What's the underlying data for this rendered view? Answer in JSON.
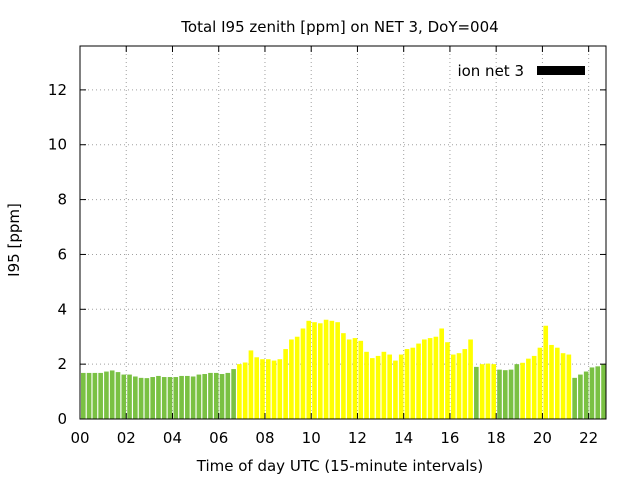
{
  "chart_data": {
    "type": "bar",
    "title": "Total I95 zenith [ppm] on NET 3, DoY=004",
    "xlabel": "Time of day UTC (15-minute intervals)",
    "ylabel": "I95 [ppm]",
    "xlim": [
      0,
      22.75
    ],
    "ylim": [
      0,
      13.6
    ],
    "xticks": [
      "00",
      "02",
      "04",
      "06",
      "08",
      "10",
      "12",
      "14",
      "16",
      "18",
      "20",
      "22"
    ],
    "yticks": [
      "0",
      "2",
      "4",
      "6",
      "8",
      "10",
      "12"
    ],
    "grid": true,
    "legend": {
      "label": "ion net 3",
      "color": "#000000",
      "placement": "top-right"
    },
    "colors": {
      "low": "#7ac143",
      "high": "#ffff00"
    },
    "bar_width_hours": 0.2,
    "bars": [
      {
        "x": 0.0,
        "y": 1.68,
        "c": "low"
      },
      {
        "x": 0.25,
        "y": 1.68,
        "c": "low"
      },
      {
        "x": 0.5,
        "y": 1.68,
        "c": "low"
      },
      {
        "x": 0.75,
        "y": 1.68,
        "c": "low"
      },
      {
        "x": 1.0,
        "y": 1.73,
        "c": "low"
      },
      {
        "x": 1.25,
        "y": 1.77,
        "c": "low"
      },
      {
        "x": 1.5,
        "y": 1.71,
        "c": "low"
      },
      {
        "x": 1.75,
        "y": 1.62,
        "c": "low"
      },
      {
        "x": 2.0,
        "y": 1.62,
        "c": "low"
      },
      {
        "x": 2.25,
        "y": 1.55,
        "c": "low"
      },
      {
        "x": 2.5,
        "y": 1.5,
        "c": "low"
      },
      {
        "x": 2.75,
        "y": 1.49,
        "c": "low"
      },
      {
        "x": 3.0,
        "y": 1.53,
        "c": "low"
      },
      {
        "x": 3.25,
        "y": 1.57,
        "c": "low"
      },
      {
        "x": 3.5,
        "y": 1.53,
        "c": "low"
      },
      {
        "x": 3.75,
        "y": 1.53,
        "c": "low"
      },
      {
        "x": 4.0,
        "y": 1.53,
        "c": "low"
      },
      {
        "x": 4.25,
        "y": 1.57,
        "c": "low"
      },
      {
        "x": 4.5,
        "y": 1.57,
        "c": "low"
      },
      {
        "x": 4.75,
        "y": 1.55,
        "c": "low"
      },
      {
        "x": 5.0,
        "y": 1.62,
        "c": "low"
      },
      {
        "x": 5.25,
        "y": 1.64,
        "c": "low"
      },
      {
        "x": 5.5,
        "y": 1.68,
        "c": "low"
      },
      {
        "x": 5.75,
        "y": 1.68,
        "c": "low"
      },
      {
        "x": 6.0,
        "y": 1.64,
        "c": "low"
      },
      {
        "x": 6.25,
        "y": 1.68,
        "c": "low"
      },
      {
        "x": 6.5,
        "y": 1.82,
        "c": "low"
      },
      {
        "x": 6.75,
        "y": 2.0,
        "c": "high"
      },
      {
        "x": 7.0,
        "y": 2.06,
        "c": "high"
      },
      {
        "x": 7.25,
        "y": 2.5,
        "c": "high"
      },
      {
        "x": 7.5,
        "y": 2.25,
        "c": "high"
      },
      {
        "x": 7.75,
        "y": 2.18,
        "c": "high"
      },
      {
        "x": 8.0,
        "y": 2.18,
        "c": "high"
      },
      {
        "x": 8.25,
        "y": 2.13,
        "c": "high"
      },
      {
        "x": 8.5,
        "y": 2.18,
        "c": "high"
      },
      {
        "x": 8.75,
        "y": 2.55,
        "c": "high"
      },
      {
        "x": 9.0,
        "y": 2.9,
        "c": "high"
      },
      {
        "x": 9.25,
        "y": 3.0,
        "c": "high"
      },
      {
        "x": 9.5,
        "y": 3.3,
        "c": "high"
      },
      {
        "x": 9.75,
        "y": 3.58,
        "c": "high"
      },
      {
        "x": 10.0,
        "y": 3.53,
        "c": "high"
      },
      {
        "x": 10.25,
        "y": 3.49,
        "c": "high"
      },
      {
        "x": 10.5,
        "y": 3.62,
        "c": "high"
      },
      {
        "x": 10.75,
        "y": 3.58,
        "c": "high"
      },
      {
        "x": 11.0,
        "y": 3.53,
        "c": "high"
      },
      {
        "x": 11.25,
        "y": 3.13,
        "c": "high"
      },
      {
        "x": 11.5,
        "y": 2.9,
        "c": "high"
      },
      {
        "x": 11.75,
        "y": 2.95,
        "c": "high"
      },
      {
        "x": 12.0,
        "y": 2.85,
        "c": "high"
      },
      {
        "x": 12.25,
        "y": 2.45,
        "c": "high"
      },
      {
        "x": 12.5,
        "y": 2.22,
        "c": "high"
      },
      {
        "x": 12.75,
        "y": 2.3,
        "c": "high"
      },
      {
        "x": 13.0,
        "y": 2.45,
        "c": "high"
      },
      {
        "x": 13.25,
        "y": 2.35,
        "c": "high"
      },
      {
        "x": 13.5,
        "y": 2.13,
        "c": "high"
      },
      {
        "x": 13.75,
        "y": 2.35,
        "c": "high"
      },
      {
        "x": 14.0,
        "y": 2.55,
        "c": "high"
      },
      {
        "x": 14.25,
        "y": 2.6,
        "c": "high"
      },
      {
        "x": 14.5,
        "y": 2.75,
        "c": "high"
      },
      {
        "x": 14.75,
        "y": 2.9,
        "c": "high"
      },
      {
        "x": 15.0,
        "y": 2.95,
        "c": "high"
      },
      {
        "x": 15.25,
        "y": 3.0,
        "c": "high"
      },
      {
        "x": 15.5,
        "y": 3.3,
        "c": "high"
      },
      {
        "x": 15.75,
        "y": 2.8,
        "c": "high"
      },
      {
        "x": 16.0,
        "y": 2.35,
        "c": "high"
      },
      {
        "x": 16.25,
        "y": 2.4,
        "c": "high"
      },
      {
        "x": 16.5,
        "y": 2.55,
        "c": "high"
      },
      {
        "x": 16.75,
        "y": 2.9,
        "c": "high"
      },
      {
        "x": 17.0,
        "y": 1.9,
        "c": "low"
      },
      {
        "x": 17.25,
        "y": 2.0,
        "c": "high"
      },
      {
        "x": 17.5,
        "y": 2.02,
        "c": "high"
      },
      {
        "x": 17.75,
        "y": 2.0,
        "c": "high"
      },
      {
        "x": 18.0,
        "y": 1.8,
        "c": "low"
      },
      {
        "x": 18.25,
        "y": 1.78,
        "c": "low"
      },
      {
        "x": 18.5,
        "y": 1.8,
        "c": "low"
      },
      {
        "x": 18.75,
        "y": 2.0,
        "c": "low"
      },
      {
        "x": 19.0,
        "y": 2.05,
        "c": "high"
      },
      {
        "x": 19.25,
        "y": 2.2,
        "c": "high"
      },
      {
        "x": 19.5,
        "y": 2.3,
        "c": "high"
      },
      {
        "x": 19.75,
        "y": 2.6,
        "c": "high"
      },
      {
        "x": 20.0,
        "y": 3.4,
        "c": "high"
      },
      {
        "x": 20.25,
        "y": 2.7,
        "c": "high"
      },
      {
        "x": 20.5,
        "y": 2.6,
        "c": "high"
      },
      {
        "x": 20.75,
        "y": 2.4,
        "c": "high"
      },
      {
        "x": 21.0,
        "y": 2.35,
        "c": "high"
      },
      {
        "x": 21.25,
        "y": 1.5,
        "c": "low"
      },
      {
        "x": 21.5,
        "y": 1.62,
        "c": "low"
      },
      {
        "x": 21.75,
        "y": 1.73,
        "c": "low"
      },
      {
        "x": 22.0,
        "y": 1.88,
        "c": "low"
      },
      {
        "x": 22.25,
        "y": 1.92,
        "c": "low"
      },
      {
        "x": 22.5,
        "y": 2.0,
        "c": "low"
      }
    ]
  }
}
